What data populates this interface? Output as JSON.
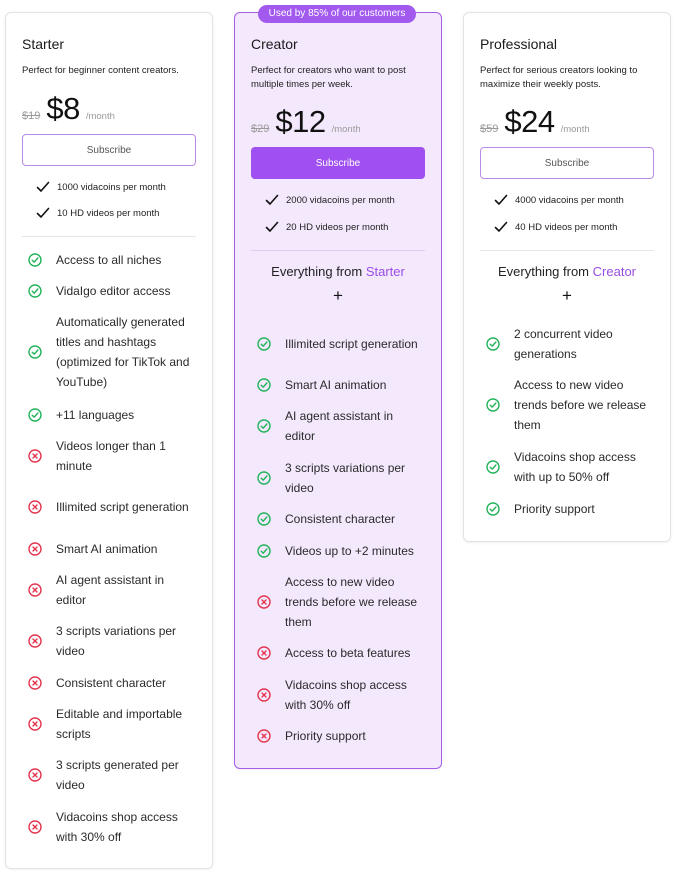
{
  "badge": "Used by 85% of our customers",
  "colors": {
    "accent": "#a04ff0",
    "ok": "#22b35a",
    "no": "#e5344e"
  },
  "icons": {
    "yes": "check-circle-icon",
    "no": "x-circle-icon",
    "quota": "check-icon"
  },
  "plans": [
    {
      "name": "Starter",
      "description": "Perfect for beginner content creators.",
      "old_price": "$19",
      "price": "$8",
      "period": "/month",
      "cta": "Subscribe",
      "quotas": [
        "1000 vidacoins per month",
        "10 HD videos per month"
      ],
      "features": [
        {
          "text": "Access to all niches",
          "included": true
        },
        {
          "text": "VidaIgo editor access",
          "included": true
        },
        {
          "text": "Automatically generated titles and hashtags (optimized for TikTok and YouTube)",
          "included": true
        },
        {
          "text": "+11 languages",
          "included": true
        },
        {
          "text": "Videos longer than 1 minute",
          "included": false
        },
        {
          "text": "Illimited script generation",
          "included": false
        },
        {
          "text": "Smart AI animation",
          "included": false
        },
        {
          "text": "AI agent assistant in editor",
          "included": false
        },
        {
          "text": "3 scripts variations per video",
          "included": false
        },
        {
          "text": "Consistent character",
          "included": false
        },
        {
          "text": "Editable and importable scripts",
          "included": false
        },
        {
          "text": "3 scripts generated per video",
          "included": false
        },
        {
          "text": "Vidacoins shop access with 30% off",
          "included": false
        }
      ]
    },
    {
      "name": "Creator",
      "description": "Perfect for creators who want to post multiple times per week.",
      "old_price": "$29",
      "price": "$12",
      "period": "/month",
      "cta": "Subscribe",
      "quotas": [
        "2000 vidacoins per month",
        "20 HD videos per month"
      ],
      "everything_prefix": "Everything from",
      "everything_plan": "Starter",
      "plus": "+",
      "features": [
        {
          "text": "Illimited script generation",
          "included": true
        },
        {
          "text": "Smart AI animation",
          "included": true
        },
        {
          "text": "AI agent assistant in editor",
          "included": true
        },
        {
          "text": "3 scripts variations per video",
          "included": true
        },
        {
          "text": "Consistent character",
          "included": true
        },
        {
          "text": "Videos up to +2 minutes",
          "included": true
        },
        {
          "text": "Access to new video trends before we release them",
          "included": false
        },
        {
          "text": "Access to beta features",
          "included": false
        },
        {
          "text": "Vidacoins shop access with 30% off",
          "included": false
        },
        {
          "text": "Priority support",
          "included": false
        }
      ]
    },
    {
      "name": "Professional",
      "description": "Perfect for serious creators looking to maximize their weekly posts.",
      "old_price": "$59",
      "price": "$24",
      "period": "/month",
      "cta": "Subscribe",
      "quotas": [
        "4000 vidacoins per month",
        "40 HD videos per month"
      ],
      "everything_prefix": "Everything from",
      "everything_plan": "Creator",
      "plus": "+",
      "features": [
        {
          "text": "2 concurrent video generations",
          "included": true
        },
        {
          "text": "Access to new video trends before we release them",
          "included": true
        },
        {
          "text": "Vidacoins shop access with up to 50% off",
          "included": true
        },
        {
          "text": "Priority support",
          "included": true
        }
      ]
    }
  ]
}
